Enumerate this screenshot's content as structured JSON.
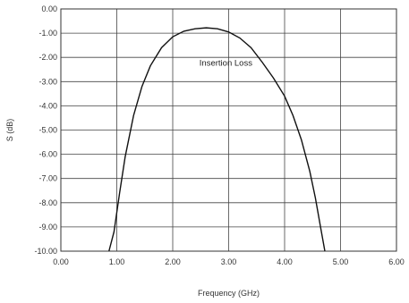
{
  "chart_data": {
    "type": "line",
    "xlabel": "Frequency (GHz)",
    "ylabel": "S (dB)",
    "xlim": [
      0,
      6
    ],
    "ylim": [
      -10,
      0
    ],
    "grid": true,
    "x_ticks": [
      "0.00",
      "1.00",
      "2.00",
      "3.00",
      "4.00",
      "5.00",
      "6.00"
    ],
    "y_ticks": [
      "0.00",
      "-1.00",
      "-2.00",
      "-3.00",
      "-4.00",
      "-5.00",
      "-6.00",
      "-7.00",
      "-8.00",
      "-9.00",
      "-10.00"
    ],
    "annotation": {
      "text": "Insertion Loss",
      "x": 2.95,
      "y": -2.35
    },
    "series": [
      {
        "x": [
          0.86,
          0.95,
          1.05,
          1.15,
          1.3,
          1.45,
          1.6,
          1.8,
          2.0,
          2.2,
          2.4,
          2.6,
          2.8,
          3.0,
          3.2,
          3.4,
          3.6,
          3.8,
          4.0,
          4.15,
          4.3,
          4.45,
          4.55,
          4.65,
          4.72
        ],
        "y": [
          -10.0,
          -9.2,
          -7.6,
          -6.1,
          -4.4,
          -3.2,
          -2.35,
          -1.6,
          -1.15,
          -0.92,
          -0.82,
          -0.78,
          -0.82,
          -0.95,
          -1.2,
          -1.6,
          -2.2,
          -2.85,
          -3.6,
          -4.4,
          -5.4,
          -6.7,
          -7.8,
          -9.1,
          -10.0
        ]
      }
    ]
  }
}
